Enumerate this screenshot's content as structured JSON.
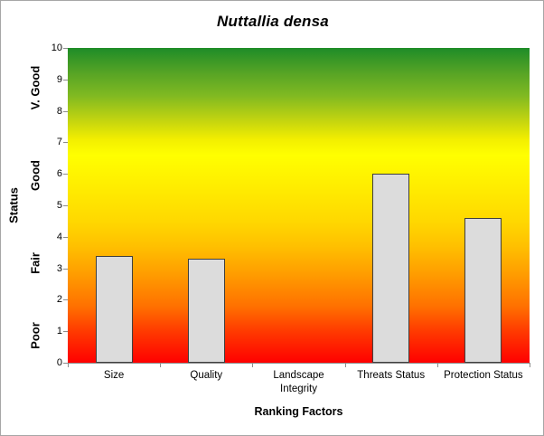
{
  "chart_data": {
    "type": "bar",
    "title": "Nuttallia densa",
    "xlabel": "Ranking Factors",
    "ylabel": "Status",
    "categories": [
      "Size",
      "Quality",
      "Landscape Integrity",
      "Threats Status",
      "Protection Status"
    ],
    "values": [
      3.4,
      3.3,
      0,
      6,
      4.6
    ],
    "ylim": [
      0,
      10
    ],
    "yticks": [
      0,
      1,
      2,
      3,
      4,
      5,
      6,
      7,
      8,
      9,
      10
    ],
    "status_bands": [
      {
        "label": "Poor",
        "center_value": 0.85
      },
      {
        "label": "Fair",
        "center_value": 3.15
      },
      {
        "label": "Good",
        "center_value": 5.95
      },
      {
        "label": "V. Good",
        "center_value": 8.75
      }
    ],
    "grid": "off",
    "legend": "none",
    "bar_fill_color": "#dcdcdc",
    "bar_border_color": "#3f3f3f",
    "axis_line_color": "#8c8c8c",
    "background_gradient_top_to_bottom": [
      {
        "color": "#1e8c28",
        "pos": 0
      },
      {
        "color": "#57a425",
        "pos": 8
      },
      {
        "color": "#7fb922",
        "pos": 15
      },
      {
        "color": "#c3d410",
        "pos": 23
      },
      {
        "color": "#f2ee00",
        "pos": 29
      },
      {
        "color": "#ffff00",
        "pos": 34
      },
      {
        "color": "#ffef00",
        "pos": 43
      },
      {
        "color": "#ffd800",
        "pos": 55
      },
      {
        "color": "#ffc000",
        "pos": 63
      },
      {
        "color": "#ff9c00",
        "pos": 72
      },
      {
        "color": "#ff7100",
        "pos": 82
      },
      {
        "color": "#ff3a00",
        "pos": 90
      },
      {
        "color": "#ff0000",
        "pos": 100
      }
    ]
  }
}
